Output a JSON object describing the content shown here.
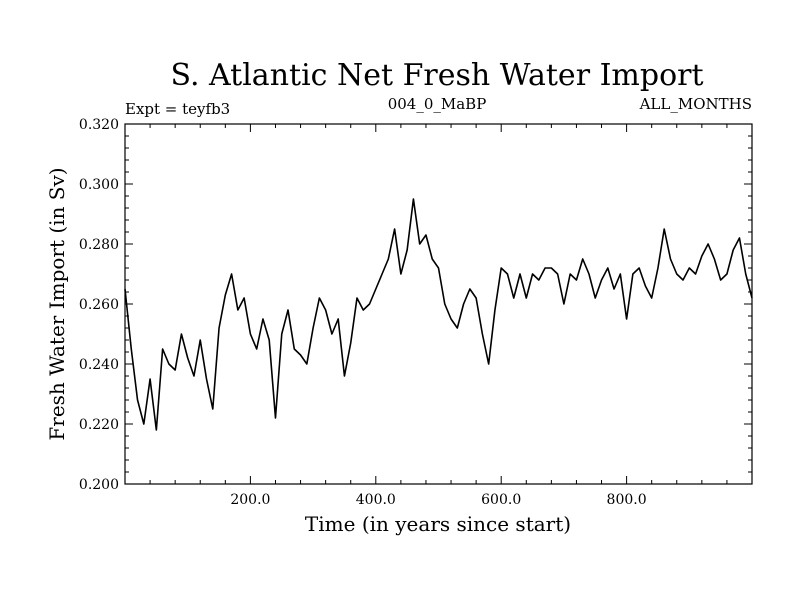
{
  "chart_data": {
    "type": "line",
    "title": "S. Atlantic Net Fresh Water Import",
    "subtitle_left": "Expt = teyfb3",
    "subtitle_center": "004_0_MaBP",
    "subtitle_right": "ALL_MONTHS",
    "xlabel": "Time (in years since start)",
    "ylabel": "Fresh Water Import (in Sv)",
    "xlim": [
      0,
      1000
    ],
    "ylim": [
      0.2,
      0.32
    ],
    "x_ticks": [
      200,
      400,
      600,
      800
    ],
    "x_tick_labels": [
      "200.0",
      "400.0",
      "600.0",
      "800.0"
    ],
    "y_ticks": [
      0.2,
      0.22,
      0.24,
      0.26,
      0.28,
      0.3,
      0.32
    ],
    "y_tick_labels": [
      "0.200",
      "0.220",
      "0.240",
      "0.260",
      "0.280",
      "0.300",
      "0.320"
    ],
    "grid": false,
    "series": [
      {
        "name": "Net Fresh Water Import",
        "color": "#000000",
        "x": [
          0,
          10,
          20,
          30,
          40,
          50,
          60,
          70,
          80,
          90,
          100,
          110,
          120,
          130,
          140,
          150,
          160,
          170,
          180,
          190,
          200,
          210,
          220,
          230,
          240,
          250,
          260,
          270,
          280,
          290,
          300,
          310,
          320,
          330,
          340,
          350,
          360,
          370,
          380,
          390,
          400,
          410,
          420,
          430,
          440,
          450,
          460,
          470,
          480,
          490,
          500,
          510,
          520,
          530,
          540,
          550,
          560,
          570,
          580,
          590,
          600,
          610,
          620,
          630,
          640,
          650,
          660,
          670,
          680,
          690,
          700,
          710,
          720,
          730,
          740,
          750,
          760,
          770,
          780,
          790,
          800,
          810,
          820,
          830,
          840,
          850,
          860,
          870,
          880,
          890,
          900,
          910,
          920,
          930,
          940,
          950,
          960,
          970,
          980,
          990,
          1000
        ],
        "values": [
          0.265,
          0.245,
          0.228,
          0.22,
          0.235,
          0.218,
          0.245,
          0.24,
          0.238,
          0.25,
          0.242,
          0.236,
          0.248,
          0.235,
          0.225,
          0.252,
          0.263,
          0.27,
          0.258,
          0.262,
          0.25,
          0.245,
          0.255,
          0.248,
          0.222,
          0.25,
          0.258,
          0.245,
          0.243,
          0.24,
          0.252,
          0.262,
          0.258,
          0.25,
          0.255,
          0.236,
          0.247,
          0.262,
          0.258,
          0.26,
          0.265,
          0.27,
          0.275,
          0.285,
          0.27,
          0.278,
          0.295,
          0.28,
          0.283,
          0.275,
          0.272,
          0.26,
          0.255,
          0.252,
          0.26,
          0.265,
          0.262,
          0.25,
          0.24,
          0.258,
          0.272,
          0.27,
          0.262,
          0.27,
          0.262,
          0.27,
          0.268,
          0.272,
          0.272,
          0.27,
          0.26,
          0.27,
          0.268,
          0.275,
          0.27,
          0.262,
          0.268,
          0.272,
          0.265,
          0.27,
          0.255,
          0.27,
          0.272,
          0.266,
          0.262,
          0.272,
          0.285,
          0.275,
          0.27,
          0.268,
          0.272,
          0.27,
          0.276,
          0.28,
          0.275,
          0.268,
          0.27,
          0.278,
          0.282,
          0.27,
          0.262
        ]
      }
    ]
  }
}
